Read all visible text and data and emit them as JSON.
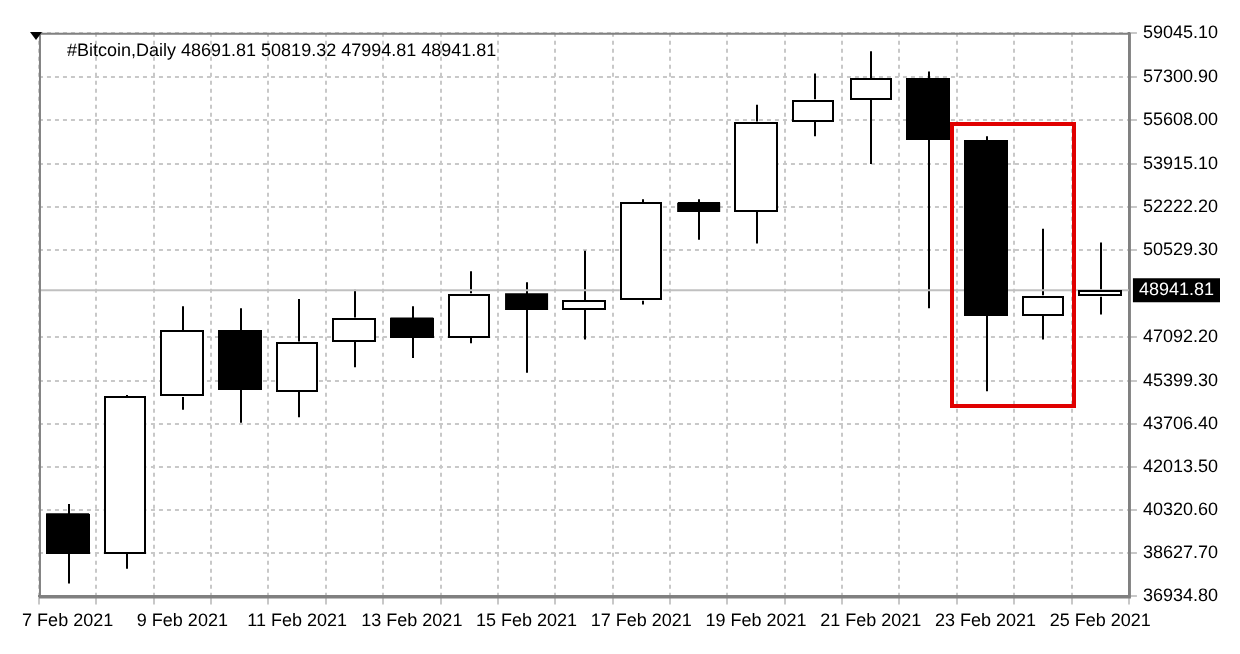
{
  "chart_data": {
    "type": "candlestick",
    "title": "#Bitcoin,Daily 48691.81 50819.32 47994.81 48941.81",
    "categories": [
      "7 Feb 2021",
      null,
      "9 Feb 2021",
      null,
      "11 Feb 2021",
      null,
      "13 Feb 2021",
      null,
      "15 Feb 2021",
      null,
      "17 Feb 2021",
      null,
      "19 Feb 2021",
      null,
      "21 Feb 2021",
      null,
      "23 Feb 2021",
      null,
      "25 Feb 2021"
    ],
    "ohlc": [
      [
        40195,
        40558,
        37440,
        38600
      ],
      [
        38600,
        44835,
        38020,
        44762
      ],
      [
        44762,
        48315,
        44255,
        47373
      ],
      [
        47373,
        48243,
        43747,
        45053
      ],
      [
        44980,
        48605,
        43965,
        46938
      ],
      [
        46938,
        48968,
        45922,
        47880
      ],
      [
        47880,
        48315,
        46285,
        47083
      ],
      [
        47083,
        49693,
        46865,
        48823
      ],
      [
        48823,
        49258,
        45705,
        48170
      ],
      [
        48170,
        50490,
        47010,
        48533
      ],
      [
        48533,
        52520,
        48388,
        52375
      ],
      [
        52375,
        52520,
        50925,
        52013
      ],
      [
        52013,
        56218,
        50780,
        55565
      ],
      [
        55565,
        57450,
        54985,
        56435
      ],
      [
        56435,
        58320,
        53898,
        57233
      ],
      [
        57233,
        57523,
        48243,
        54840
      ],
      [
        54840,
        54985,
        44980,
        47953
      ],
      [
        47953,
        51360,
        47010,
        48750
      ],
      [
        48691.81,
        50819.32,
        47994.81,
        48941.81
      ]
    ],
    "colors": [
      "#000000",
      "#ffffff",
      "#ffffff",
      "#000000",
      "#ffffff",
      "#ffffff",
      "#000000",
      "#ffffff",
      "#000000",
      "#ffffff",
      "#ffffff",
      "#000000",
      "#ffffff",
      "#ffffff",
      "#ffffff",
      "#000000",
      "#000000",
      "#ffffff",
      "#ffffff"
    ],
    "ylim": [
      36934.8,
      59045.1
    ],
    "yticks": [
      {
        "value": 36934.8,
        "label": "36934.80"
      },
      {
        "value": 38627.7,
        "label": "38627.70"
      },
      {
        "value": 40320.6,
        "label": "40320.60"
      },
      {
        "value": 42013.5,
        "label": "42013.50"
      },
      {
        "value": 43706.4,
        "label": "43706.40"
      },
      {
        "value": 45399.3,
        "label": "45399.30"
      },
      {
        "value": 47092.2,
        "label": "47092.20"
      },
      {
        "value": 50529.3,
        "label": "50529.30"
      },
      {
        "value": 52222.2,
        "label": "52222.20"
      },
      {
        "value": 53915.1,
        "label": "53915.10"
      },
      {
        "value": 55608,
        "label": "55608.00"
      },
      {
        "value": 57300.9,
        "label": "57300.90"
      },
      {
        "value": 59045.1,
        "label": "59045.10"
      }
    ],
    "grid": true,
    "ref_lines": [
      {
        "axis": "y",
        "value": 48941.81,
        "label": "48941.81",
        "color": "#c0c0c0"
      }
    ]
  }
}
